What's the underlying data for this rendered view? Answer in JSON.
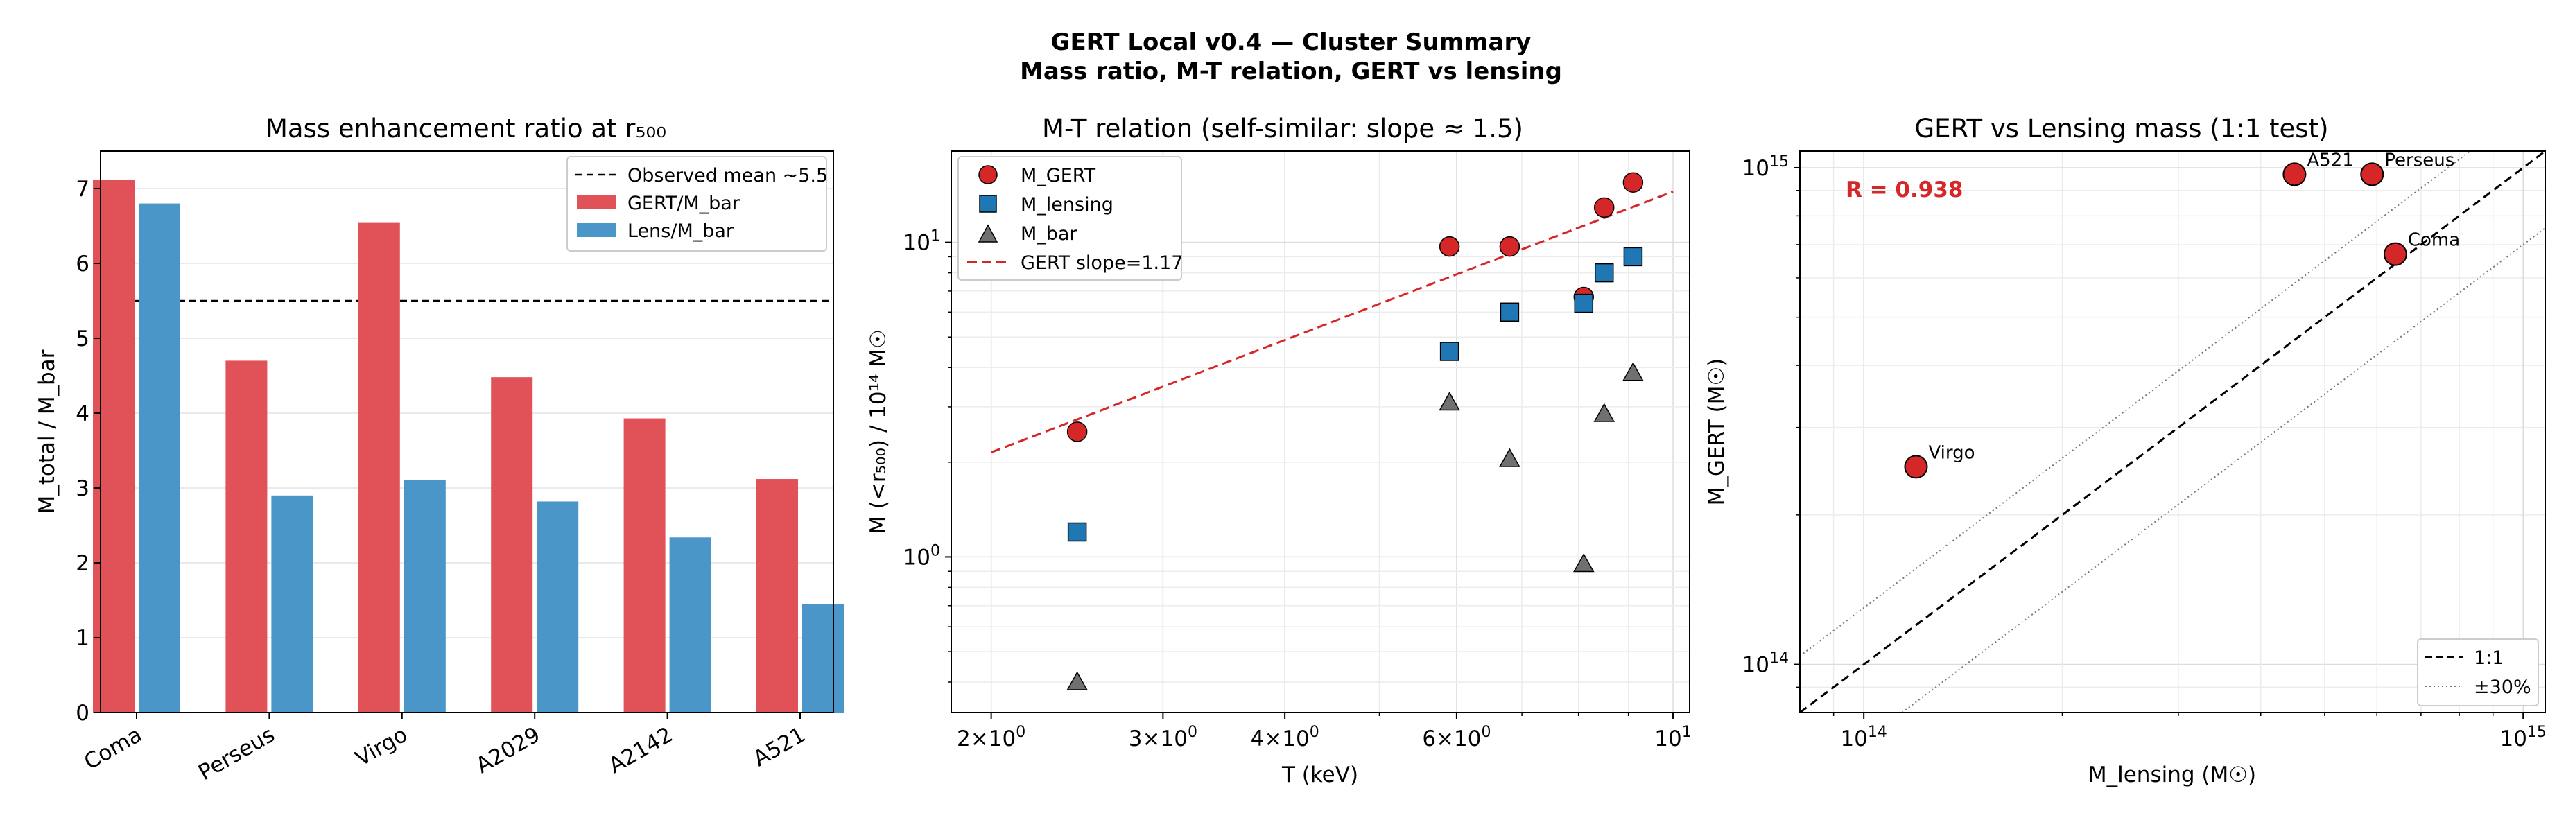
{
  "figure": {
    "title_line1": "GERT Local v0.4 — Cluster Summary",
    "title_line2": "Mass ratio, M-T relation, GERT vs lensing"
  },
  "colors": {
    "red": "#d62728",
    "blue": "#1f77b4",
    "gray": "#707070",
    "bar_red": "#e05257",
    "bar_blue": "#4b96c8"
  },
  "chart_data": [
    {
      "type": "bar",
      "title": "Mass enhancement ratio at r₅₀₀",
      "xlabel": "",
      "ylabel": "M_total / M_bar",
      "categories": [
        "Coma",
        "Perseus",
        "Virgo",
        "A2029",
        "A2142",
        "A521"
      ],
      "series": [
        {
          "name": "GERT/M_bar",
          "color": "#e05257",
          "values": [
            7.12,
            4.7,
            6.55,
            4.48,
            3.93,
            3.12
          ]
        },
        {
          "name": "Lens/M_bar",
          "color": "#4b96c8",
          "values": [
            6.8,
            2.9,
            3.11,
            2.82,
            2.34,
            1.45
          ]
        }
      ],
      "reference_line": {
        "name": "Observed mean ~5.5",
        "y": 5.5
      },
      "ylim": [
        0,
        7.5
      ],
      "yticks": [
        "0",
        "1",
        "2",
        "3",
        "4",
        "5",
        "6",
        "7"
      ],
      "legend_position": "top-right",
      "grid": "y"
    },
    {
      "type": "scatter",
      "title": "M-T relation  (self-similar: slope ≈ 1.5)",
      "xlabel": "T (keV)",
      "ylabel": "M (<r₅₀₀) / 10¹⁴ M☉",
      "x_scale": "log",
      "y_scale": "log",
      "xlim": [
        1.82,
        10.4
      ],
      "ylim": [
        0.32,
        19.5
      ],
      "xticks": [
        {
          "v": 2,
          "m": "2",
          "e": "0"
        },
        {
          "v": 3,
          "m": "3",
          "e": "0"
        },
        {
          "v": 4,
          "m": "4",
          "e": "0"
        },
        {
          "v": 6,
          "m": "6",
          "e": "0"
        },
        {
          "v": 10,
          "m": "",
          "e": "1"
        }
      ],
      "yticks": [
        {
          "v": 1,
          "e": "0"
        },
        {
          "v": 10,
          "e": "1"
        }
      ],
      "series": [
        {
          "name": "M_GERT",
          "marker": "circle",
          "color": "#d62728",
          "x": [
            2.45,
            5.9,
            6.8,
            8.1,
            8.5,
            9.1
          ],
          "y": [
            2.5,
            9.7,
            9.7,
            6.7,
            12.9,
            15.5
          ]
        },
        {
          "name": "M_lensing",
          "marker": "square",
          "color": "#1f77b4",
          "x": [
            2.45,
            5.9,
            6.8,
            8.1,
            8.5,
            9.1
          ],
          "y": [
            1.2,
            4.5,
            6.0,
            6.4,
            8.0,
            9.0
          ]
        },
        {
          "name": "M_bar",
          "marker": "triangle",
          "color": "#707070",
          "x": [
            2.45,
            5.9,
            6.8,
            8.1,
            8.5,
            9.1
          ],
          "y": [
            0.4,
            3.1,
            2.05,
            0.95,
            2.85,
            3.85
          ]
        }
      ],
      "fit_line": {
        "name": "GERT slope=1.17",
        "slope": 1.17,
        "x": [
          2,
          10
        ],
        "y": [
          2.15,
          14.5
        ]
      },
      "legend_position": "top-left",
      "grid": "both"
    },
    {
      "type": "scatter",
      "title": "GERT vs Lensing mass (1:1 test)",
      "xlabel": "M_lensing (M☉)",
      "ylabel": "M_GERT (M☉)",
      "x_scale": "log",
      "y_scale": "log",
      "xlim": [
        80000000000000.0,
        1080000000000000.0
      ],
      "ylim": [
        80000000000000.0,
        1080000000000000.0
      ],
      "ticks": [
        {
          "v": 100000000000000.0,
          "e": "14"
        },
        {
          "v": 1000000000000000.0,
          "e": "15"
        }
      ],
      "annotation": "R = 0.938",
      "points": [
        {
          "label": "Virgo",
          "x": 120000000000000.0,
          "y": 250000000000000.0
        },
        {
          "label": "A521",
          "x": 450000000000000.0,
          "y": 970000000000000.0
        },
        {
          "label": "Perseus",
          "x": 590000000000000.0,
          "y": 970000000000000.0
        },
        {
          "label": "Coma",
          "x": 640000000000000.0,
          "y": 670000000000000.0
        }
      ],
      "lines": [
        {
          "name": "1:1",
          "style": "dashed"
        },
        {
          "name": "±30%",
          "style": "dotted"
        }
      ],
      "legend_position": "bottom-right",
      "grid": "both"
    }
  ]
}
